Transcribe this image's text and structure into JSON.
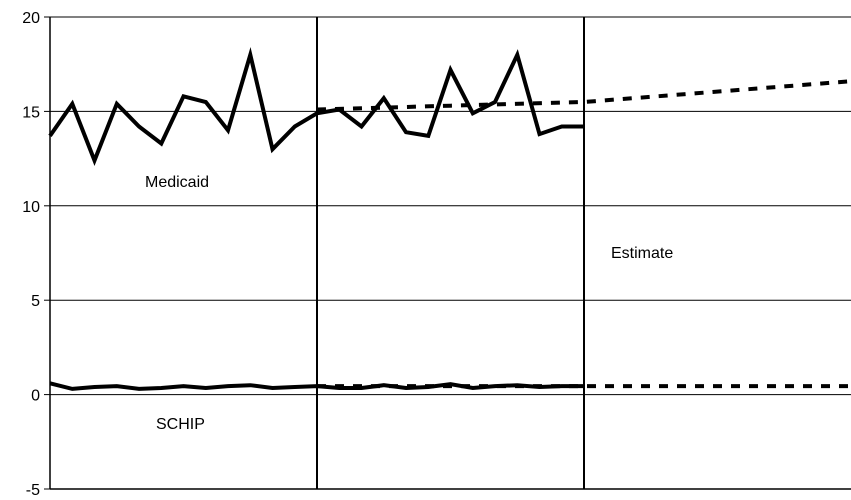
{
  "chart_data": {
    "type": "line",
    "title": "",
    "xlabel": "",
    "ylabel": "",
    "ylim": [
      -5,
      20
    ],
    "ytick_labels": [
      "-5",
      "0",
      "5",
      "10",
      "15",
      "20"
    ],
    "grid": "horizontal",
    "legend": "none",
    "annotations": {
      "medicaid": "Medicaid",
      "schip": "SCHIP",
      "estimate": "Estimate"
    },
    "series": [
      {
        "key": "medicaid-actual",
        "style": "solid",
        "x": [
          0,
          1,
          2,
          3,
          4,
          5,
          6,
          7,
          8,
          9,
          10,
          11,
          12,
          13,
          14,
          15,
          16,
          17,
          18,
          19,
          20,
          21,
          22,
          23,
          24
        ],
        "values": [
          13.7,
          15.4,
          12.4,
          15.4,
          14.2,
          13.3,
          15.8,
          15.5,
          14.0,
          18.0,
          13.0,
          14.2,
          14.9,
          15.1,
          14.2,
          15.7,
          13.9,
          13.7,
          17.2,
          14.9,
          15.5,
          18.0,
          13.8,
          14.2,
          14.2
        ]
      },
      {
        "key": "medicaid-projection",
        "style": "dotted",
        "x": [
          12,
          18,
          24,
          36
        ],
        "values": [
          15.1,
          15.3,
          15.5,
          16.6
        ]
      },
      {
        "key": "schip-actual",
        "style": "solid",
        "x": [
          0,
          1,
          2,
          3,
          4,
          5,
          6,
          7,
          8,
          9,
          10,
          11,
          12,
          13,
          14,
          15,
          16,
          17,
          18,
          19,
          20,
          21,
          22,
          23,
          24
        ],
        "values": [
          0.6,
          0.3,
          0.4,
          0.45,
          0.3,
          0.35,
          0.45,
          0.35,
          0.45,
          0.5,
          0.35,
          0.4,
          0.45,
          0.35,
          0.35,
          0.5,
          0.35,
          0.4,
          0.55,
          0.35,
          0.45,
          0.5,
          0.4,
          0.45,
          0.45
        ]
      },
      {
        "key": "schip-projection",
        "style": "dotted",
        "x": [
          12,
          24,
          36
        ],
        "values": [
          0.45,
          0.45,
          0.45
        ]
      }
    ],
    "x_range": [
      0,
      36
    ],
    "vertical_dividers": [
      12,
      24
    ]
  }
}
